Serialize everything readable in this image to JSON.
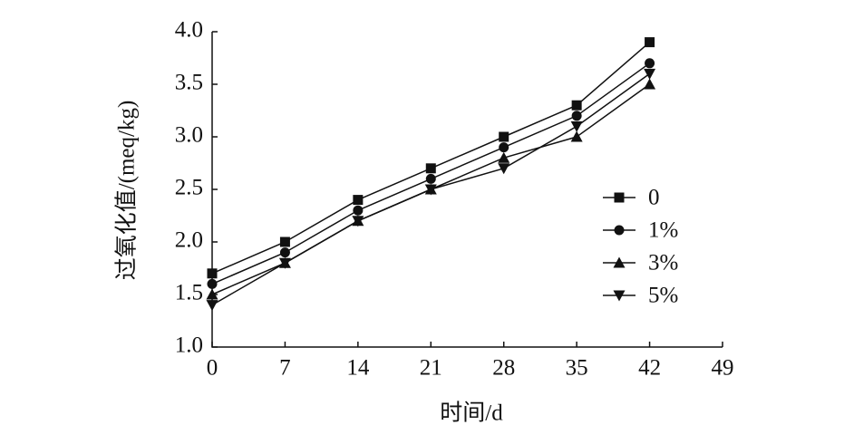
{
  "chart_data": {
    "type": "line",
    "x_label": "时间/d",
    "y_label": "过氧化值/(meq/kg)",
    "x": [
      0,
      7,
      14,
      21,
      28,
      35,
      42
    ],
    "series": [
      {
        "name": "0",
        "color": "#111111",
        "marker": "square",
        "values": [
          1.7,
          2.0,
          2.4,
          2.7,
          3.0,
          3.3,
          3.9
        ]
      },
      {
        "name": "1%",
        "color": "#111111",
        "marker": "circle",
        "values": [
          1.6,
          1.9,
          2.3,
          2.6,
          2.9,
          3.2,
          3.7
        ]
      },
      {
        "name": "3%",
        "color": "#111111",
        "marker": "triangle-up",
        "values": [
          1.5,
          1.8,
          2.2,
          2.5,
          2.8,
          3.0,
          3.5
        ]
      },
      {
        "name": "5%",
        "color": "#111111",
        "marker": "triangle-down",
        "values": [
          1.4,
          1.8,
          2.2,
          2.5,
          2.7,
          3.1,
          3.6
        ]
      }
    ],
    "xlim": [
      0,
      49
    ],
    "xticks": [
      0,
      7,
      14,
      21,
      28,
      35,
      42,
      49
    ],
    "ylim": [
      1,
      4
    ],
    "yticks": [
      {
        "value": 1,
        "label": "1.0"
      },
      {
        "value": 1.5,
        "label": "1.5"
      },
      {
        "value": 2,
        "label": "2.0"
      },
      {
        "value": 2.5,
        "label": "2.5"
      },
      {
        "value": 3,
        "label": "3.0"
      },
      {
        "value": 3.5,
        "label": "3.5"
      },
      {
        "value": 4,
        "label": "4.0"
      }
    ],
    "grid": false,
    "legend": "right"
  }
}
